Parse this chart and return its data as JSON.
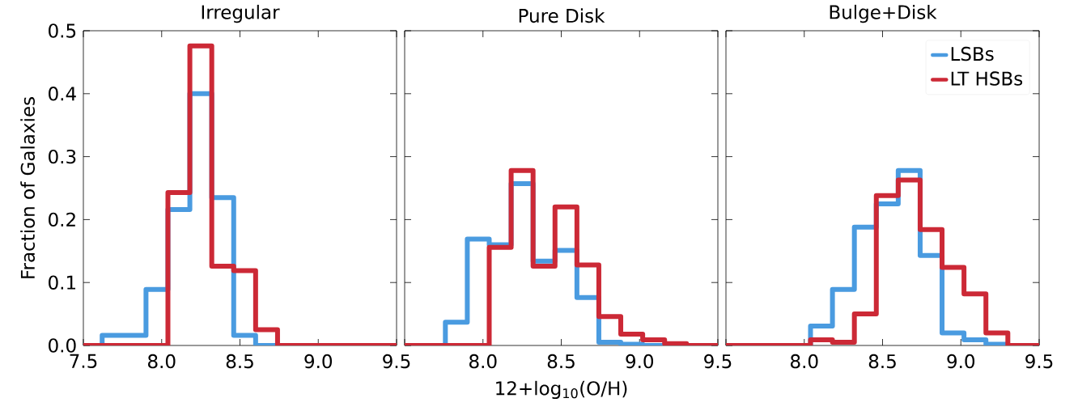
{
  "chart_data": [
    {
      "type": "histogram",
      "title": "Irregular",
      "ylabel": "Fraction of Galaxies",
      "bins": [
        7.5,
        7.62,
        7.76,
        7.9,
        8.04,
        8.18,
        8.32,
        8.46,
        8.6,
        8.74,
        8.88,
        9.02,
        9.16,
        9.3,
        9.44,
        9.5
      ],
      "series": [
        {
          "color": "#4a9be0",
          "values": [
            0,
            0.016,
            0.016,
            0.089,
            0.216,
            0.4,
            0.235,
            0.016,
            0,
            0,
            0,
            0,
            0,
            0,
            0
          ]
        },
        {
          "color": "#cc2936",
          "values": [
            0,
            0,
            0,
            0,
            0.243,
            0.476,
            0.126,
            0.119,
            0.025,
            0,
            0,
            0,
            0,
            0,
            0
          ]
        }
      ],
      "xlim": [
        7.5,
        9.5
      ],
      "ylim": [
        0.0,
        0.5
      ],
      "xticks": [
        7.5,
        {
          "value": 8.0,
          "label": "8.0"
        },
        8.5,
        {
          "value": 9.0,
          "label": "9.0"
        },
        9.5
      ],
      "yticks": [
        {
          "value": 0.0,
          "label": "0.0"
        },
        0.1,
        0.2,
        0.3,
        0.4,
        0.5
      ]
    },
    {
      "type": "histogram",
      "title": "Pure Disk",
      "xlabel": "12+log$_{10}$(O/H)",
      "bins": [
        7.5,
        7.62,
        7.76,
        7.9,
        8.04,
        8.18,
        8.32,
        8.46,
        8.6,
        8.74,
        8.88,
        9.02,
        9.16,
        9.3,
        9.44,
        9.5
      ],
      "series": [
        {
          "color": "#4a9be0",
          "values": [
            0,
            0,
            0.037,
            0.169,
            0.16,
            0.257,
            0.134,
            0.151,
            0.076,
            0.005,
            0.002,
            0,
            0,
            0,
            0
          ]
        },
        {
          "color": "#cc2936",
          "values": [
            0,
            0,
            0,
            0,
            0.156,
            0.278,
            0.126,
            0.22,
            0.128,
            0.046,
            0.018,
            0.009,
            0.003,
            0,
            0
          ]
        }
      ],
      "xlim": [
        7.5,
        9.5
      ],
      "ylim": [
        0.0,
        0.5
      ],
      "xticks": [
        {
          "value": 7.5,
          "label": null
        },
        {
          "value": 8.0,
          "label": "8.0"
        },
        8.5,
        {
          "value": 9.0,
          "label": "9.0"
        },
        9.5
      ],
      "yticks": [
        0.0,
        0.1,
        0.2,
        0.3,
        0.4,
        0.5
      ],
      "tick_labels": "x"
    },
    {
      "type": "histogram",
      "title": "Bulge+Disk",
      "legend": "top right",
      "bins": [
        7.5,
        7.62,
        7.76,
        7.9,
        8.04,
        8.18,
        8.32,
        8.46,
        8.6,
        8.74,
        8.88,
        9.02,
        9.16,
        9.3,
        9.44,
        9.5
      ],
      "series": [
        {
          "name": "LSBs",
          "color": "#4a9be0",
          "values": [
            0,
            0,
            0,
            0,
            0.031,
            0.089,
            0.188,
            0.225,
            0.278,
            0.143,
            0.02,
            0.009,
            0.002,
            0,
            0
          ]
        },
        {
          "name": "LT HSBs",
          "color": "#cc2936",
          "values": [
            0,
            0,
            0,
            0,
            0.009,
            0.005,
            0.05,
            0.238,
            0.263,
            0.184,
            0.124,
            0.082,
            0.02,
            0,
            0
          ]
        }
      ],
      "xlim": [
        7.5,
        9.5
      ],
      "ylim": [
        0.0,
        0.5
      ],
      "xticks": [
        {
          "value": 7.5,
          "label": null
        },
        {
          "value": 8.0,
          "label": "8.0"
        },
        8.5,
        {
          "value": 9.0,
          "label": "9.0"
        },
        9.5
      ],
      "yticks": [
        0.0,
        0.1,
        0.2,
        0.3,
        0.4,
        0.5
      ],
      "tick_labels": "x"
    }
  ]
}
